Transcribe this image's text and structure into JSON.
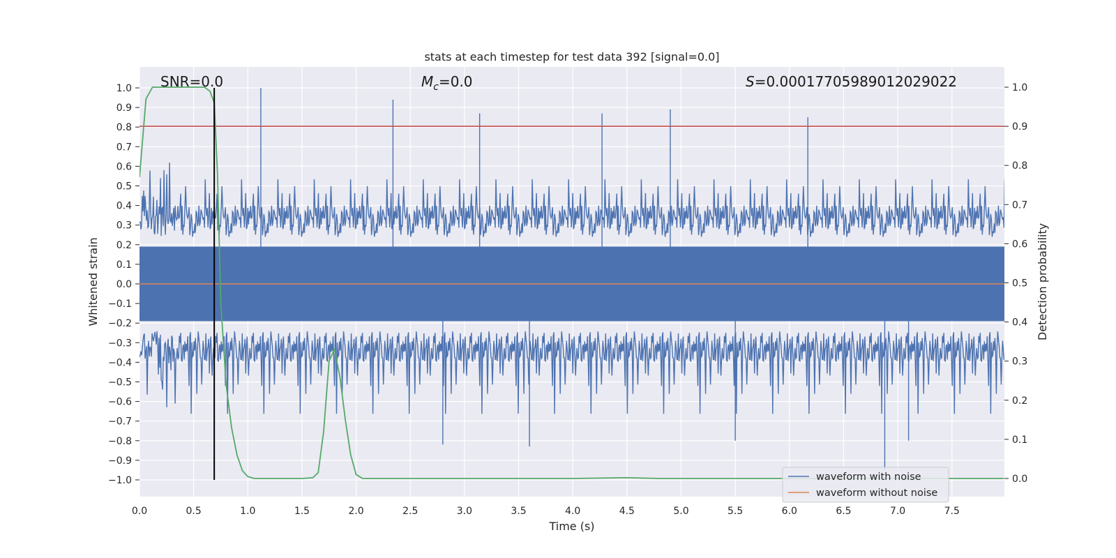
{
  "chart_data": {
    "type": "line",
    "title": "stats at each timestep for test data 392 [signal=0.0]",
    "xlabel": "Time (s)",
    "ylabel": "Whitened strain",
    "y2label": "Detection probability",
    "xlim": [
      0.0,
      8.0
    ],
    "ylim": [
      -1.1,
      1.1
    ],
    "y2lim": [
      -0.05,
      1.05
    ],
    "xticks": [
      "0.0",
      "0.5",
      "1.0",
      "1.5",
      "2.0",
      "2.5",
      "3.0",
      "3.5",
      "4.0",
      "4.5",
      "5.0",
      "5.5",
      "6.0",
      "6.5",
      "7.0",
      "7.5"
    ],
    "yticks": [
      "1.0",
      "0.9",
      "0.8",
      "0.7",
      "0.6",
      "0.5",
      "0.4",
      "0.3",
      "0.2",
      "0.1",
      "0.0",
      "−0.1",
      "−0.2",
      "−0.3",
      "−0.4",
      "−0.5",
      "−0.6",
      "−0.7",
      "−0.8",
      "−0.9",
      "−1.0"
    ],
    "y2ticks": [
      "1.0",
      "0.9",
      "0.8",
      "0.7",
      "0.6",
      "0.5",
      "0.4",
      "0.3",
      "0.2",
      "0.1",
      "0.0"
    ],
    "annotations": {
      "snr": "SNR=0.0",
      "mc_symbol": "M",
      "mc_sub": "c",
      "mc_value": "=0.0",
      "s_symbol": "S",
      "s_value": "=0.00017705989012029022"
    },
    "threshold": {
      "value": 0.9,
      "axis": "right",
      "color": "#c44e52"
    },
    "marker_line": {
      "x": 0.69,
      "ymin": -1.0,
      "ymax": 1.0,
      "color": "#000000"
    },
    "series": [
      {
        "name": "waveform with noise",
        "axis": "left",
        "color": "#4c72b0",
        "envelope_range": [
          -0.95,
          1.0
        ],
        "peaks": [
          {
            "x": 1.12,
            "y": 1.0
          },
          {
            "x": 2.34,
            "y": 0.94
          },
          {
            "x": 3.14,
            "y": 0.87
          },
          {
            "x": 4.27,
            "y": 0.87
          },
          {
            "x": 4.9,
            "y": 0.89
          },
          {
            "x": 6.17,
            "y": 0.85
          },
          {
            "x": 6.88,
            "y": -0.95
          },
          {
            "x": 3.6,
            "y": -0.83
          },
          {
            "x": 2.8,
            "y": -0.82
          },
          {
            "x": 5.5,
            "y": -0.8
          },
          {
            "x": 7.1,
            "y": -0.8
          }
        ]
      },
      {
        "name": "waveform without noise",
        "axis": "left",
        "color": "#dd8452",
        "x": [
          0.0,
          8.0
        ],
        "y": [
          0.0,
          0.0
        ]
      },
      {
        "name": "detection probability",
        "axis": "right",
        "color": "#55a868",
        "x": [
          0.0,
          0.06,
          0.12,
          0.2,
          0.3,
          0.4,
          0.5,
          0.6,
          0.65,
          0.69,
          0.72,
          0.75,
          0.8,
          0.85,
          0.9,
          0.95,
          1.0,
          1.06,
          1.15,
          1.3,
          1.5,
          1.6,
          1.65,
          1.7,
          1.75,
          1.8,
          1.85,
          1.9,
          1.95,
          2.0,
          2.06,
          2.5,
          3.0,
          4.0,
          4.5,
          4.8,
          5.0,
          6.0,
          7.0,
          7.5,
          7.98
        ],
        "y": [
          0.77,
          0.97,
          1.0,
          1.0,
          1.0,
          1.0,
          1.0,
          1.0,
          0.99,
          0.96,
          0.78,
          0.45,
          0.24,
          0.13,
          0.06,
          0.02,
          0.005,
          0.0,
          0.0,
          0.0,
          0.0,
          0.002,
          0.015,
          0.12,
          0.3,
          0.33,
          0.26,
          0.15,
          0.06,
          0.01,
          0.0,
          0.0,
          0.0,
          0.0,
          0.002,
          0.0,
          0.0,
          0.0,
          0.0,
          0.0,
          0.0
        ]
      }
    ],
    "legend": {
      "position": "lower-right",
      "entries": [
        {
          "label": "waveform with noise",
          "color": "#4c72b0"
        },
        {
          "label": "waveform without noise",
          "color": "#dd8452"
        }
      ]
    }
  }
}
